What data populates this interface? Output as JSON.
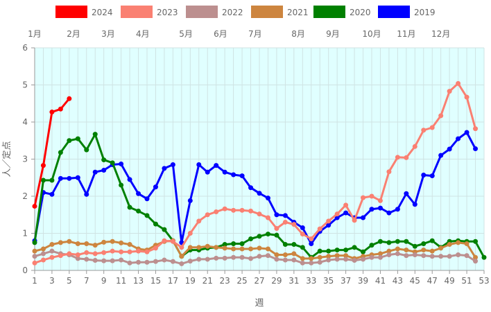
{
  "chart_data": {
    "type": "line",
    "xlabel": "週",
    "ylabel": "人／定点",
    "xlim": [
      1,
      53
    ],
    "ylim": [
      0,
      6
    ],
    "x_ticks": [
      1,
      3,
      5,
      7,
      9,
      11,
      13,
      15,
      17,
      19,
      21,
      23,
      25,
      27,
      29,
      31,
      33,
      35,
      37,
      39,
      41,
      43,
      45,
      47,
      49,
      51,
      53
    ],
    "y_ticks": [
      0,
      1,
      2,
      3,
      4,
      5,
      6
    ],
    "grid": true,
    "legend_position": "top",
    "month_labels": [
      {
        "label": "1月",
        "week": 1
      },
      {
        "label": "2月",
        "week": 5.5
      },
      {
        "label": "3月",
        "week": 9.5
      },
      {
        "label": "4月",
        "week": 13.5
      },
      {
        "label": "5月",
        "week": 18.5
      },
      {
        "label": "6月",
        "week": 22.5
      },
      {
        "label": "7月",
        "week": 26.5
      },
      {
        "label": "8月",
        "week": 31.5
      },
      {
        "label": "9月",
        "week": 35.5
      },
      {
        "label": "10月",
        "week": 40
      },
      {
        "label": "11月",
        "week": 44
      },
      {
        "label": "12月",
        "week": 48
      }
    ],
    "series": [
      {
        "name": "2024",
        "color": "#ff0000",
        "values": [
          1.73,
          2.83,
          4.27,
          4.35,
          4.63
        ]
      },
      {
        "name": "2023",
        "color": "#fa8072",
        "values": [
          0.2,
          0.28,
          0.35,
          0.4,
          0.45,
          0.42,
          0.48,
          0.45,
          0.48,
          0.52,
          0.5,
          0.5,
          0.52,
          0.5,
          0.6,
          0.8,
          0.78,
          0.62,
          1.0,
          1.33,
          1.5,
          1.58,
          1.66,
          1.62,
          1.62,
          1.6,
          1.52,
          1.42,
          1.13,
          1.3,
          1.24,
          0.98,
          0.85,
          1.12,
          1.33,
          1.52,
          1.76,
          1.35,
          1.96,
          2.0,
          1.88,
          2.66,
          3.05,
          3.04,
          3.34,
          3.78,
          3.85,
          4.17,
          4.83,
          5.04,
          4.67,
          3.82
        ]
      },
      {
        "name": "2022",
        "color": "#bc8f8f",
        "values": [
          0.38,
          0.45,
          0.52,
          0.45,
          0.42,
          0.32,
          0.3,
          0.27,
          0.26,
          0.26,
          0.28,
          0.2,
          0.22,
          0.22,
          0.24,
          0.28,
          0.24,
          0.18,
          0.25,
          0.3,
          0.3,
          0.33,
          0.33,
          0.35,
          0.35,
          0.32,
          0.38,
          0.4,
          0.3,
          0.28,
          0.28,
          0.2,
          0.2,
          0.22,
          0.28,
          0.3,
          0.3,
          0.27,
          0.3,
          0.35,
          0.35,
          0.42,
          0.45,
          0.4,
          0.42,
          0.4,
          0.38,
          0.38,
          0.38,
          0.42,
          0.4,
          0.25
        ]
      },
      {
        "name": "2021",
        "color": "#cd853f",
        "values": [
          0.52,
          0.58,
          0.7,
          0.75,
          0.78,
          0.72,
          0.72,
          0.68,
          0.76,
          0.78,
          0.74,
          0.7,
          0.58,
          0.55,
          0.68,
          0.78,
          0.8,
          0.38,
          0.62,
          0.62,
          0.65,
          0.62,
          0.6,
          0.58,
          0.58,
          0.58,
          0.6,
          0.58,
          0.42,
          0.42,
          0.45,
          0.32,
          0.32,
          0.35,
          0.38,
          0.4,
          0.4,
          0.32,
          0.38,
          0.42,
          0.45,
          0.52,
          0.58,
          0.55,
          0.5,
          0.55,
          0.52,
          0.6,
          0.7,
          0.75,
          0.72,
          0.35
        ]
      },
      {
        "name": "2020",
        "color": "#008000",
        "values": [
          0.75,
          2.43,
          2.43,
          3.18,
          3.5,
          3.55,
          3.25,
          3.67,
          2.98,
          2.9,
          2.3,
          1.7,
          1.6,
          1.48,
          1.25,
          1.1,
          0.8,
          0.38,
          0.55,
          0.55,
          0.6,
          0.62,
          0.7,
          0.72,
          0.72,
          0.85,
          0.92,
          0.98,
          0.95,
          0.7,
          0.7,
          0.62,
          0.35,
          0.52,
          0.52,
          0.55,
          0.55,
          0.62,
          0.5,
          0.68,
          0.78,
          0.75,
          0.78,
          0.78,
          0.65,
          0.72,
          0.8,
          0.62,
          0.78,
          0.8,
          0.78,
          0.78,
          0.35
        ]
      },
      {
        "name": "2019",
        "color": "#0000ff",
        "values": [
          0.8,
          2.1,
          2.05,
          2.48,
          2.48,
          2.5,
          2.05,
          2.65,
          2.7,
          2.85,
          2.87,
          2.45,
          2.07,
          1.93,
          2.25,
          2.75,
          2.85,
          0.75,
          1.88,
          2.85,
          2.65,
          2.83,
          2.65,
          2.58,
          2.55,
          2.23,
          2.08,
          1.95,
          1.5,
          1.48,
          1.3,
          1.15,
          0.72,
          1.05,
          1.22,
          1.42,
          1.55,
          1.42,
          1.42,
          1.65,
          1.68,
          1.55,
          1.65,
          2.07,
          1.78,
          2.57,
          2.55,
          3.1,
          3.27,
          3.55,
          3.72,
          3.28
        ]
      }
    ]
  }
}
